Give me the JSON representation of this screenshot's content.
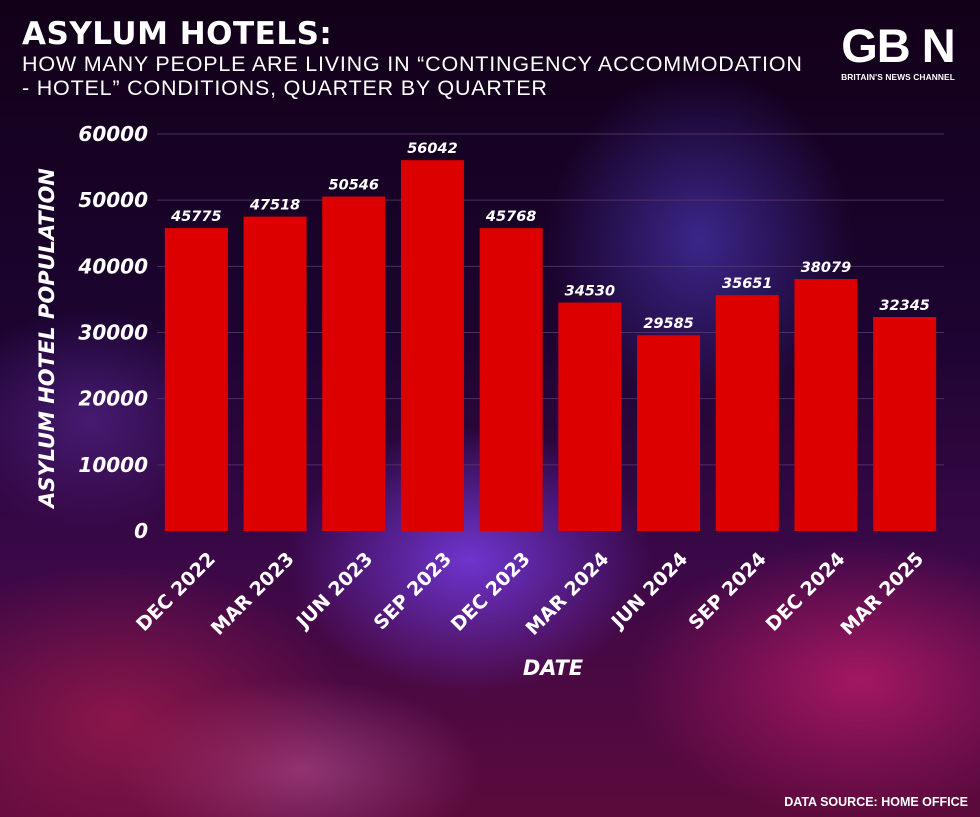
{
  "header": {
    "title": "ASYLUM HOTELS:",
    "subtitle": "HOW MANY PEOPLE ARE LIVING IN “CONTINGENCY ACCOMMODATION - HOTEL” CONDITIONS, QUARTER BY QUARTER"
  },
  "logo": {
    "mark": "GB N",
    "tagline": "BRITAIN'S NEWS CHANNEL"
  },
  "footer": {
    "source": "DATA SOURCE: HOME OFFICE"
  },
  "colors": {
    "bar": "#dd0000",
    "grid": "#5a3a6a"
  },
  "chart_data": {
    "type": "bar",
    "title": "ASYLUM HOTELS:",
    "xlabel": "DATE",
    "ylabel": "ASYLUM HOTEL POPULATION",
    "ylim": [
      0,
      60000
    ],
    "yticks": [
      0,
      10000,
      20000,
      30000,
      40000,
      50000,
      60000
    ],
    "grid": true,
    "categories": [
      "DEC 2022",
      "MAR 2023",
      "JUN 2023",
      "SEP 2023",
      "DEC 2023",
      "MAR 2024",
      "JUN 2024",
      "SEP 2024",
      "DEC 2024",
      "MAR 2025"
    ],
    "values": [
      45775,
      47518,
      50546,
      56042,
      45768,
      34530,
      29585,
      35651,
      38079,
      32345
    ]
  }
}
